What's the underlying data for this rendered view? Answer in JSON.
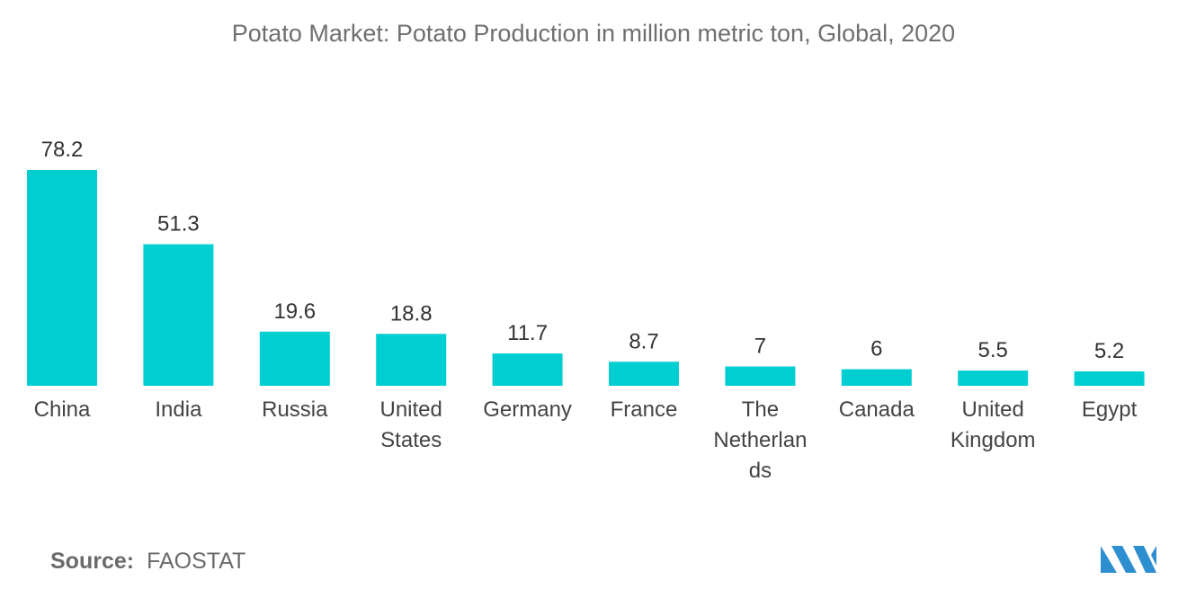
{
  "title": "Potato Market: Potato Production in million metric ton, Global, 2020",
  "source": {
    "label": "Source:",
    "value": "FAOSTAT"
  },
  "colors": {
    "bar": "#00CED1",
    "logo": "#2e8fd0"
  },
  "chart_data": {
    "type": "bar",
    "title": "Potato Market: Potato Production in million metric ton, Global, 2020",
    "categories": [
      "China",
      "India",
      "Russia",
      "United States",
      "Germany",
      "France",
      "The Netherlands",
      "Canada",
      "United Kingdom",
      "Egypt"
    ],
    "category_label_lines": [
      [
        "China"
      ],
      [
        "India"
      ],
      [
        "Russia"
      ],
      [
        "United",
        "States"
      ],
      [
        "Germany"
      ],
      [
        "France"
      ],
      [
        "The",
        "Netherlan",
        "ds"
      ],
      [
        "Canada"
      ],
      [
        "United",
        "Kingdom"
      ],
      [
        "Egypt"
      ]
    ],
    "values": [
      78.2,
      51.3,
      19.6,
      18.8,
      11.7,
      8.7,
      7,
      6,
      5.5,
      5.2
    ],
    "value_labels": [
      "78.2",
      "51.3",
      "19.6",
      "18.8",
      "11.7",
      "8.7",
      "7",
      "6",
      "5.5",
      "5.2"
    ],
    "xlabel": "",
    "ylabel": "",
    "ylim": [
      0,
      78.2
    ],
    "grid": false,
    "legend": "none"
  }
}
